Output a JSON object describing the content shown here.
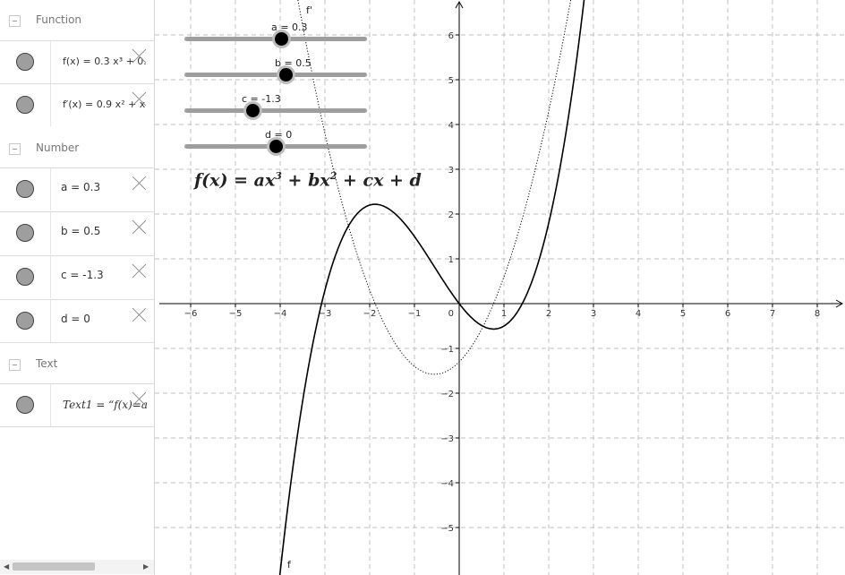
{
  "algebra": {
    "groups": {
      "function": "Function",
      "number": "Number",
      "text": "Text"
    },
    "items": {
      "f": {
        "name": "f(x)",
        "value": "0.3 x³ + 0."
      },
      "fprime": {
        "name": "f′(x)",
        "value": "0.9 x² + x"
      },
      "a": "a = 0.3",
      "b": "b = 0.5",
      "c": "c = -1.3",
      "d": "d = 0",
      "text1": "Text1 = “f(x)=a"
    }
  },
  "sliders": [
    {
      "label": "a = 0.3",
      "value": 0.3
    },
    {
      "label": "b = 0.5",
      "value": 0.5
    },
    {
      "label": "c = -1.3",
      "value": -1.3
    },
    {
      "label": "d = 0",
      "value": 0
    }
  ],
  "formula_text": {
    "lhs": "f(x) = ax",
    "sup1": "3",
    "mid": " + bx",
    "sup2": "2",
    "rhs": " + cx + d"
  },
  "graph": {
    "x_ticks": [
      "−6",
      "−5",
      "−4",
      "−3",
      "−2",
      "−1",
      "1",
      "2",
      "3",
      "4",
      "5",
      "6",
      "7",
      "8"
    ],
    "y_ticks": [
      "6",
      "5",
      "4",
      "3",
      "2",
      "1",
      "−1",
      "−2",
      "−3",
      "−4",
      "−5"
    ],
    "origin_label": "0",
    "curve_labels": {
      "f": "f",
      "fprime": "f'"
    },
    "x_range": [
      -6.7,
      8.6
    ],
    "y_range": [
      -5.8,
      7.0
    ],
    "grid": true,
    "colors": {
      "axis": "#000000",
      "grid": "#c0c0c0",
      "curve": "#000000"
    }
  },
  "chart_data": {
    "type": "line",
    "title": "",
    "series": [
      {
        "name": "f",
        "function": "0.3x^3 + 0.5x^2 - 1.3x + 0",
        "style": "solid"
      },
      {
        "name": "f'",
        "function": "0.9x^2 + x - 1.3",
        "style": "dotted"
      }
    ],
    "xlim": [
      -6.7,
      8.6
    ],
    "ylim": [
      -5.8,
      7.0
    ],
    "grid": true
  }
}
